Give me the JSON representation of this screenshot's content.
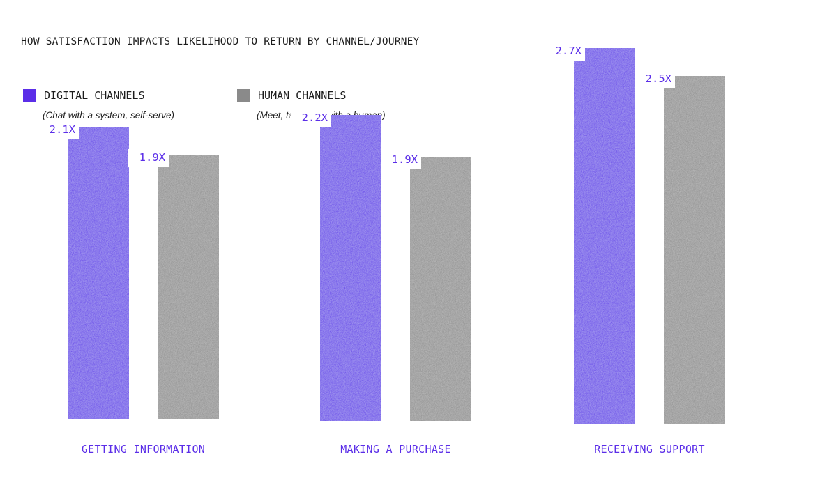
{
  "chart_data": {
    "type": "bar",
    "title": "HOW SATISFACTION IMPACTS LIKELIHOOD TO RETURN BY CHANNEL/JOURNEY",
    "categories": [
      "GETTING INFORMATION",
      "MAKING A PURCHASE",
      "RECEIVING SUPPORT"
    ],
    "series": [
      {
        "name": "DIGITAL CHANNELS",
        "description": "(Chat with a system, self-serve)",
        "color": "#5b2ee8",
        "values": [
          2.1,
          2.2,
          2.7
        ],
        "value_labels": [
          "2.1X",
          "2.2X",
          "2.7X"
        ]
      },
      {
        "name": "HUMAN CHANNELS",
        "description": "(Meet, talk, chat with a human)",
        "color": "#8a8a8a",
        "values": [
          1.9,
          1.9,
          2.5
        ],
        "value_labels": [
          "1.9X",
          "1.9X",
          "2.5X"
        ]
      }
    ],
    "label_color": "#5b2ee8",
    "grid": false,
    "legend_position": "top-left"
  }
}
